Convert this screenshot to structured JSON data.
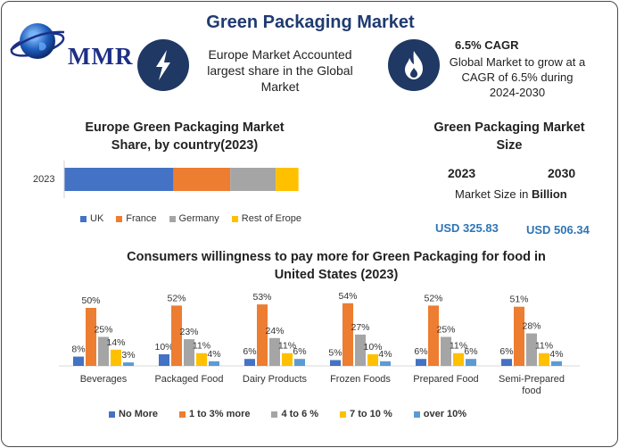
{
  "title": "Green Packaging Market",
  "logo_text": "MMR",
  "facts": {
    "europe": "Europe Market Accounted largest share in the Global Market",
    "cagr_title": "6.5% CAGR",
    "cagr_text": "Global Market to grow at a CAGR of 6.5% during 2024-2030"
  },
  "market_size": {
    "title": "Green Packaging Market Size",
    "year_a": "2023",
    "year_b": "2030",
    "unit_prefix": "Market Size in ",
    "unit_bold": "Billion",
    "value_a": "USD 325.83",
    "value_b": "USD 506.34"
  },
  "icons": {
    "left": "lightning-icon",
    "right": "flame-icon",
    "logo": "globe-icon"
  },
  "colors": {
    "uk": "#4472c4",
    "france": "#ed7d31",
    "germany": "#a5a5a5",
    "rest": "#ffc000",
    "over10": "#5b9bd5",
    "title_blue": "#1f3b70",
    "usd_blue": "#2e75b6"
  },
  "chart_data": [
    {
      "type": "bar",
      "orientation": "horizontal-stacked",
      "title": "Europe Green Packaging Market Share, by country(2023)",
      "categories": [
        "2023"
      ],
      "series": [
        {
          "name": "UK",
          "values": [
            48
          ]
        },
        {
          "name": "France",
          "values": [
            25
          ]
        },
        {
          "name": "Germany",
          "values": [
            20
          ]
        },
        {
          "name": "Rest of Erope",
          "values": [
            10
          ]
        }
      ],
      "legend": "bottom"
    },
    {
      "type": "bar",
      "title": "Consumers willingness to pay more for Green Packaging for food in United States (2023)",
      "categories": [
        "Beverages",
        "Packaged Food",
        "Dairy Products",
        "Frozen Foods",
        "Prepared Food",
        "Semi-Prepared food"
      ],
      "series": [
        {
          "name": "No More",
          "values": [
            8,
            10,
            6,
            5,
            6,
            6
          ]
        },
        {
          "name": "1 to 3% more",
          "values": [
            50,
            52,
            53,
            54,
            52,
            51
          ]
        },
        {
          "name": "4 to 6 %",
          "values": [
            25,
            23,
            24,
            27,
            25,
            28
          ]
        },
        {
          "name": "7 to 10 %",
          "values": [
            14,
            11,
            11,
            10,
            11,
            11
          ]
        },
        {
          "name": "over 10%",
          "values": [
            3,
            4,
            6,
            4,
            6,
            4
          ]
        }
      ],
      "data_label_suffix": "%",
      "legend": "bottom"
    }
  ]
}
